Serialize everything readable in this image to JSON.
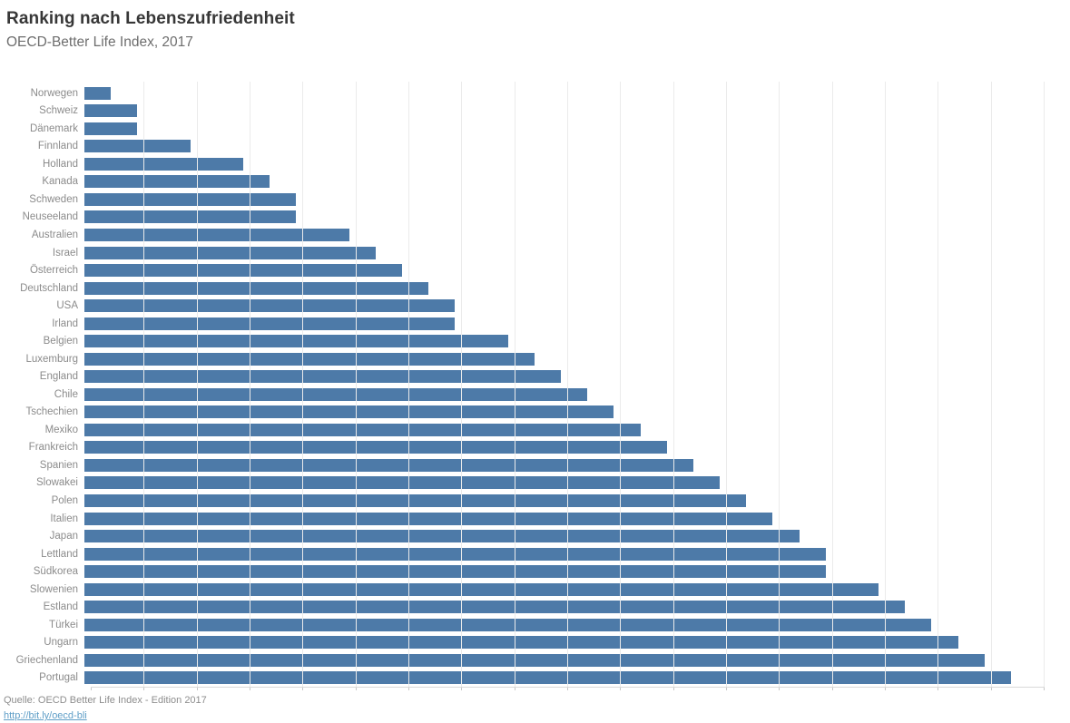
{
  "header": {
    "title": "Ranking nach Lebenszufriedenheit",
    "subtitle": "OECD-Better Life Index, 2017"
  },
  "footer": {
    "source": "Quelle: OECD Better Life Index - Edition 2017",
    "link": "http://bit.ly/oecd-bli"
  },
  "chart_data": {
    "type": "bar",
    "orientation": "horizontal",
    "title": "Ranking nach Lebenszufriedenheit",
    "subtitle": "OECD-Better Life Index, 2017",
    "xlabel": "",
    "ylabel": "",
    "xlim": [
      0,
      36
    ],
    "gridline_step": 2,
    "grid": true,
    "legend": false,
    "axis_tick_labels_visible": false,
    "categories": [
      "Norwegen",
      "Schweiz",
      "Dänemark",
      "Finnland",
      "Holland",
      "Kanada",
      "Schweden",
      "Neuseeland",
      "Australien",
      "Israel",
      "Österreich",
      "Deutschland",
      "USA",
      "Irland",
      "Belgien",
      "Luxemburg",
      "England",
      "Chile",
      "Tschechien",
      "Mexiko",
      "Frankreich",
      "Spanien",
      "Slowakei",
      "Polen",
      "Italien",
      "Japan",
      "Lettland",
      "Südkorea",
      "Slowenien",
      "Estland",
      "Türkei",
      "Ungarn",
      "Griechenland",
      "Portugal"
    ],
    "values": [
      1,
      2,
      2,
      4,
      6,
      7,
      8,
      8,
      10,
      11,
      12,
      13,
      14,
      14,
      16,
      17,
      18,
      19,
      20,
      21,
      22,
      23,
      24,
      25,
      26,
      27,
      28,
      28,
      30,
      31,
      32,
      33,
      34,
      35
    ],
    "colors": {
      "bar": "#4d7aa8",
      "gridline": "#ebebeb",
      "baseline": "#d9d9d9",
      "tick": "#c6c6c6",
      "link": "#5f9ec7"
    }
  }
}
